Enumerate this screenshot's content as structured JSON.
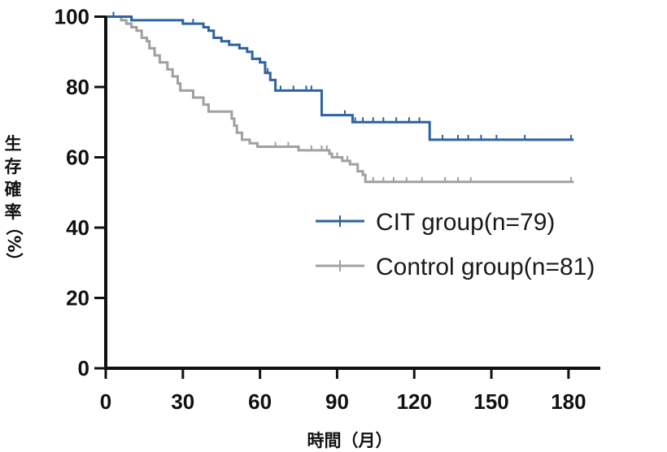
{
  "chart_data": {
    "type": "line",
    "title": "",
    "xlabel": "時間（月）",
    "ylabel_chars": [
      "生",
      "存",
      "確",
      "率",
      "（%）"
    ],
    "xlim": [
      0,
      190
    ],
    "ylim": [
      0,
      100
    ],
    "x_ticks": [
      0,
      30,
      60,
      90,
      120,
      150,
      180
    ],
    "y_ticks": [
      0,
      20,
      40,
      60,
      80,
      100
    ],
    "grid": false,
    "legend_position": "center-right",
    "series": [
      {
        "name": "CIT group(n=79)",
        "color": "#2e62a0",
        "steps": [
          [
            0,
            100
          ],
          [
            10,
            99
          ],
          [
            30,
            98
          ],
          [
            38,
            97
          ],
          [
            40,
            96
          ],
          [
            42,
            94
          ],
          [
            45,
            93
          ],
          [
            48,
            92
          ],
          [
            52,
            91
          ],
          [
            55,
            90
          ],
          [
            57,
            88
          ],
          [
            60,
            87
          ],
          [
            62,
            84
          ],
          [
            64,
            82
          ],
          [
            66,
            79
          ],
          [
            82,
            79
          ],
          [
            84,
            72
          ],
          [
            95,
            72
          ],
          [
            96,
            70
          ],
          [
            125,
            70
          ],
          [
            126,
            65
          ],
          [
            182,
            65
          ]
        ],
        "censor_x": [
          3,
          34,
          48,
          52,
          57,
          60,
          63,
          68,
          73,
          78,
          80,
          93,
          97,
          100,
          104,
          108,
          113,
          118,
          122,
          131,
          137,
          141,
          146,
          152,
          163,
          181
        ]
      },
      {
        "name": "Control group(n=81)",
        "color": "#a0a0a0",
        "steps": [
          [
            0,
            100
          ],
          [
            6,
            99
          ],
          [
            8,
            98
          ],
          [
            10,
            97
          ],
          [
            12,
            96
          ],
          [
            14,
            94
          ],
          [
            16,
            93
          ],
          [
            17,
            91
          ],
          [
            19,
            89
          ],
          [
            21,
            87
          ],
          [
            24,
            85
          ],
          [
            26,
            83
          ],
          [
            28,
            81
          ],
          [
            29,
            79
          ],
          [
            34,
            77
          ],
          [
            38,
            75
          ],
          [
            40,
            73
          ],
          [
            49,
            71
          ],
          [
            50,
            69
          ],
          [
            51,
            67
          ],
          [
            53,
            65
          ],
          [
            56,
            64
          ],
          [
            59,
            63
          ],
          [
            75,
            62
          ],
          [
            87,
            61
          ],
          [
            88,
            60
          ],
          [
            92,
            59
          ],
          [
            95,
            58
          ],
          [
            98,
            56
          ],
          [
            100,
            55
          ],
          [
            101,
            53
          ],
          [
            182,
            53
          ]
        ],
        "censor_x": [
          66,
          71,
          75,
          80,
          84,
          86,
          90,
          94,
          100,
          104,
          108,
          112,
          117,
          123,
          132,
          137,
          142,
          181
        ]
      }
    ]
  }
}
